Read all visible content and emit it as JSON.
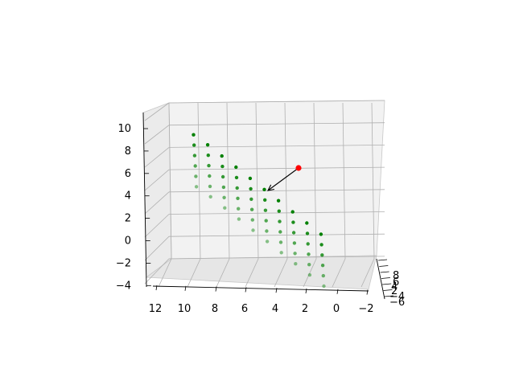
{
  "chart_data": {
    "type": "scatter",
    "projection": "3d",
    "colors": {
      "points": "#008000",
      "highlight": "#ff0000",
      "arrow": "#000000",
      "pane": "#f2f2f2",
      "grid": "#b0b0b0"
    },
    "xlim": [
      -2,
      12
    ],
    "ylim": [
      -6,
      8
    ],
    "zlim": [
      -4,
      10
    ],
    "x_ticks": [
      "12",
      "10",
      "8",
      "6",
      "4",
      "2",
      "0",
      "−2"
    ],
    "y_ticks": [
      "8",
      "6",
      "4",
      "2",
      "−4",
      "−6"
    ],
    "z_ticks": [
      "10",
      "8",
      "6",
      "4",
      "2",
      "0",
      "−2",
      "−4"
    ],
    "series": [
      {
        "points": [
          {
            "x": 10,
            "y": 0,
            "z": 10.2
          },
          {
            "x": 10,
            "y": 0.6,
            "z": 9.4
          },
          {
            "x": 10,
            "y": 1.2,
            "z": 8.6
          },
          {
            "x": 10,
            "y": 1.8,
            "z": 7.8
          },
          {
            "x": 10,
            "y": 2.4,
            "z": 7.0
          },
          {
            "x": 10,
            "y": 3.0,
            "z": 6.2
          },
          {
            "x": 9,
            "y": 0,
            "z": 9.3
          },
          {
            "x": 9,
            "y": 0.6,
            "z": 8.5
          },
          {
            "x": 9,
            "y": 1.2,
            "z": 7.7
          },
          {
            "x": 9,
            "y": 1.8,
            "z": 6.9
          },
          {
            "x": 9,
            "y": 2.4,
            "z": 6.1
          },
          {
            "x": 9,
            "y": 3.0,
            "z": 5.3
          },
          {
            "x": 8,
            "y": 0,
            "z": 8.3
          },
          {
            "x": 8,
            "y": 0.6,
            "z": 7.5
          },
          {
            "x": 8,
            "y": 1.2,
            "z": 6.7
          },
          {
            "x": 8,
            "y": 1.8,
            "z": 5.9
          },
          {
            "x": 8,
            "y": 2.4,
            "z": 5.1
          },
          {
            "x": 8,
            "y": 3.0,
            "z": 4.3
          },
          {
            "x": 7,
            "y": 0,
            "z": 7.3
          },
          {
            "x": 7,
            "y": 0.6,
            "z": 6.5
          },
          {
            "x": 7,
            "y": 1.2,
            "z": 5.7
          },
          {
            "x": 7,
            "y": 1.8,
            "z": 4.9
          },
          {
            "x": 7,
            "y": 2.4,
            "z": 4.1
          },
          {
            "x": 7,
            "y": 3.0,
            "z": 3.3
          },
          {
            "x": 6,
            "y": 0,
            "z": 6.3
          },
          {
            "x": 6,
            "y": 0.6,
            "z": 5.5
          },
          {
            "x": 6,
            "y": 1.2,
            "z": 4.7
          },
          {
            "x": 6,
            "y": 1.8,
            "z": 3.9
          },
          {
            "x": 6,
            "y": 2.4,
            "z": 3.1
          },
          {
            "x": 6,
            "y": 3.0,
            "z": 2.3
          },
          {
            "x": 5,
            "y": 0,
            "z": 5.3
          },
          {
            "x": 5,
            "y": 0.6,
            "z": 4.5
          },
          {
            "x": 5,
            "y": 1.2,
            "z": 3.7
          },
          {
            "x": 5,
            "y": 1.8,
            "z": 2.9
          },
          {
            "x": 5,
            "y": 2.4,
            "z": 2.1
          },
          {
            "x": 5,
            "y": 3.0,
            "z": 1.3
          },
          {
            "x": 4,
            "y": 0,
            "z": 4.3
          },
          {
            "x": 4,
            "y": 0.6,
            "z": 3.5
          },
          {
            "x": 4,
            "y": 1.2,
            "z": 2.7
          },
          {
            "x": 4,
            "y": 1.8,
            "z": 1.9
          },
          {
            "x": 4,
            "y": 2.4,
            "z": 1.1
          },
          {
            "x": 4,
            "y": 3.0,
            "z": 0.3
          },
          {
            "x": 3,
            "y": 0,
            "z": 3.3
          },
          {
            "x": 3,
            "y": 0.6,
            "z": 2.5
          },
          {
            "x": 3,
            "y": 1.2,
            "z": 1.7
          },
          {
            "x": 3,
            "y": 1.8,
            "z": 0.9
          },
          {
            "x": 3,
            "y": 2.4,
            "z": 0.1
          },
          {
            "x": 3,
            "y": 3.0,
            "z": -0.7
          },
          {
            "x": 2,
            "y": 0,
            "z": 2.3
          },
          {
            "x": 2,
            "y": 0.6,
            "z": 1.5
          },
          {
            "x": 2,
            "y": 1.2,
            "z": 0.7
          },
          {
            "x": 2,
            "y": 1.8,
            "z": -0.1
          },
          {
            "x": 2,
            "y": 2.4,
            "z": -0.9
          },
          {
            "x": 2,
            "y": 3.0,
            "z": -1.7
          },
          {
            "x": 1,
            "y": 0,
            "z": 1.3
          },
          {
            "x": 1,
            "y": 0.6,
            "z": 0.5
          },
          {
            "x": 1,
            "y": 1.2,
            "z": -0.3
          },
          {
            "x": 1,
            "y": 1.8,
            "z": -1.1
          },
          {
            "x": 1,
            "y": 2.4,
            "z": -1.9
          },
          {
            "x": 1,
            "y": 3.0,
            "z": -2.7
          }
        ]
      }
    ],
    "highlight_point": {
      "x": 4,
      "y": -2,
      "z": 6.5
    },
    "arrow": {
      "from": {
        "x": 4,
        "y": -2,
        "z": 6.5
      },
      "to": {
        "x": 5.2,
        "y": 0.5,
        "z": 4.7
      }
    }
  }
}
